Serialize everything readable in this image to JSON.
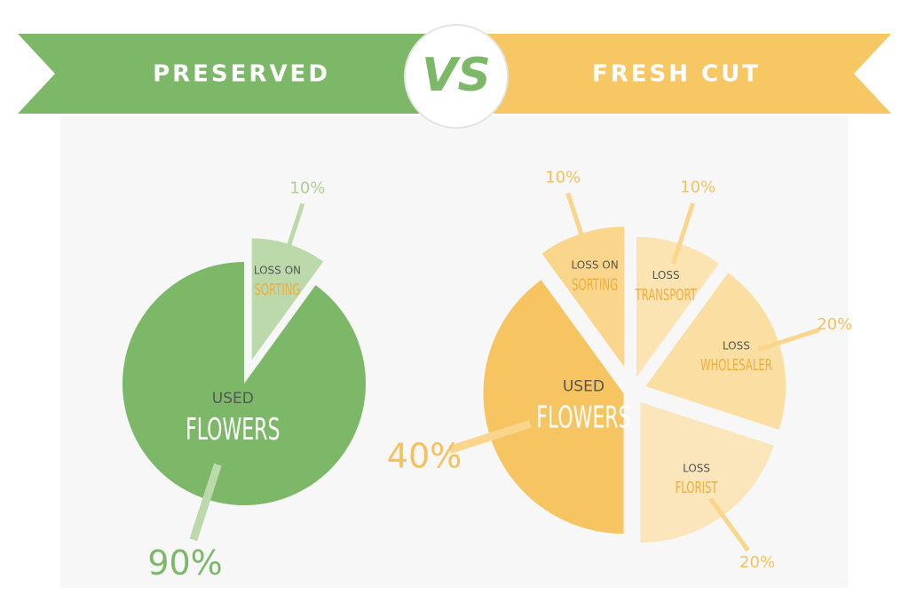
{
  "vs_label": "VS",
  "chart_data": [
    {
      "type": "pie",
      "title": "PRESERVED",
      "categories": [
        [
          "LOSS ON",
          "SORTING"
        ],
        [
          "USED",
          "FLOWERS"
        ]
      ],
      "values": [
        10,
        90
      ],
      "value_labels": [
        "10%",
        "90%"
      ],
      "colors": [
        "#bcd9ab",
        "#7cb868"
      ]
    },
    {
      "type": "pie",
      "title": "FRESH CUT",
      "categories": [
        [
          "LOSS",
          "TRANSPORT"
        ],
        [
          "LOSS",
          "WHOLESALER"
        ],
        [
          "LOSS",
          "FLORIST"
        ],
        [
          "USED",
          "FLOWERS"
        ],
        [
          "LOSS ON",
          "SORTING"
        ]
      ],
      "values": [
        10,
        20,
        20,
        40,
        10
      ],
      "value_labels": [
        "10%",
        "20%",
        "20%",
        "40%",
        "10%"
      ],
      "colors": [
        "#fbe4b2",
        "#fbdfa2",
        "#fbe5ba",
        "#f7c462",
        "#f9d68c"
      ]
    }
  ]
}
